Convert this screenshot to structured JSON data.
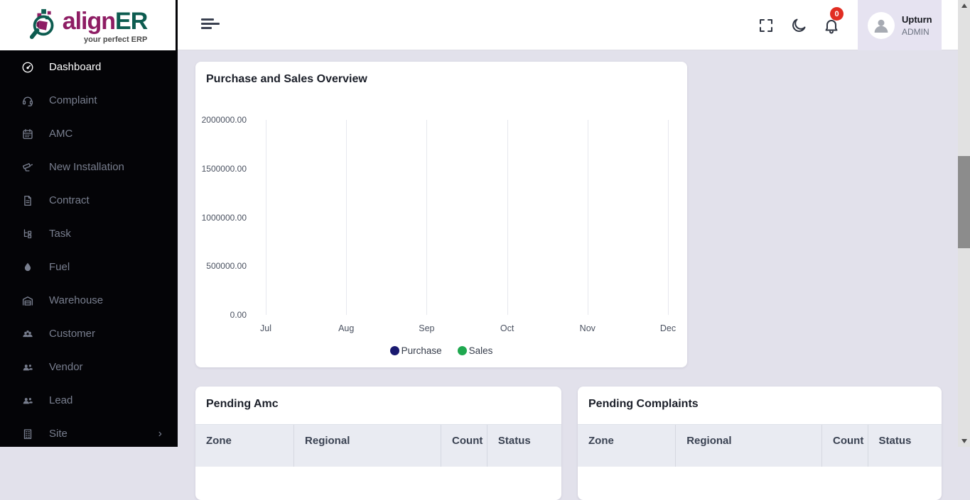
{
  "logo": {
    "brand_align": "align",
    "brand_er": "ER",
    "tagline": "your perfect ERP"
  },
  "sidebar": {
    "items": [
      {
        "label": "Dashboard",
        "icon": "gauge-icon",
        "active": true,
        "has_submenu": false
      },
      {
        "label": "Complaint",
        "icon": "headset-icon",
        "active": false,
        "has_submenu": false
      },
      {
        "label": "AMC",
        "icon": "calendar-icon",
        "active": false,
        "has_submenu": false
      },
      {
        "label": "New Installation",
        "icon": "cctv-camera-icon",
        "active": false,
        "has_submenu": false
      },
      {
        "label": "Contract",
        "icon": "document-icon",
        "active": false,
        "has_submenu": false
      },
      {
        "label": "Task",
        "icon": "task-list-icon",
        "active": false,
        "has_submenu": false
      },
      {
        "label": "Fuel",
        "icon": "droplet-icon",
        "active": false,
        "has_submenu": false
      },
      {
        "label": "Warehouse",
        "icon": "warehouse-icon",
        "active": false,
        "has_submenu": false
      },
      {
        "label": "Customer",
        "icon": "people-group-icon",
        "active": false,
        "has_submenu": false
      },
      {
        "label": "Vendor",
        "icon": "people-icon",
        "active": false,
        "has_submenu": false
      },
      {
        "label": "Lead",
        "icon": "people-icon",
        "active": false,
        "has_submenu": false
      },
      {
        "label": "Site",
        "icon": "building-icon",
        "active": false,
        "has_submenu": true
      }
    ]
  },
  "topbar": {
    "notification_count": "0",
    "user": {
      "name": "Upturn",
      "role": "ADMIN"
    }
  },
  "chart_card": {
    "title": "Purchase and Sales Overview"
  },
  "chart_data": {
    "type": "line",
    "title": "Purchase and Sales Overview",
    "categories": [
      "Jul",
      "Aug",
      "Sep",
      "Oct",
      "Nov",
      "Dec"
    ],
    "series": [
      {
        "name": "Purchase",
        "color": "#191970",
        "values": [
          0,
          0,
          0,
          0,
          0,
          0
        ]
      },
      {
        "name": "Sales",
        "color": "#1fa84f",
        "values": [
          0,
          0,
          0,
          0,
          0,
          0
        ]
      }
    ],
    "ylim": [
      0,
      2000000
    ],
    "yticks": [
      "2000000.00",
      "1500000.00",
      "1000000.00",
      "500000.00",
      "0.00"
    ],
    "grid": "vertical-only",
    "legend_position": "bottom"
  },
  "pending_amc": {
    "title": "Pending Amc",
    "columns": [
      "Zone",
      "Regional",
      "Count",
      "Status"
    ],
    "rows": []
  },
  "pending_complaints": {
    "title": "Pending Complaints",
    "columns": [
      "Zone",
      "Regional",
      "Count",
      "Status"
    ],
    "rows": []
  },
  "colors": {
    "sidebar_bg": "#040407",
    "content_bg": "#e2e1eb",
    "brand_magenta": "#8e1d64",
    "brand_teal": "#0d5c50",
    "purchase_series": "#191970",
    "sales_series": "#1fa84f",
    "notification_badge": "#e12d22",
    "table_header_bg": "#e9ebf2"
  }
}
